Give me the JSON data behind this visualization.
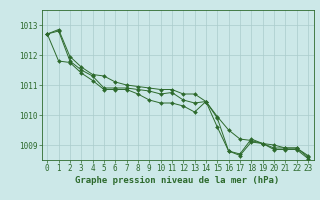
{
  "xlabel": "Graphe pression niveau de la mer (hPa)",
  "hours": [
    0,
    1,
    2,
    3,
    4,
    5,
    6,
    7,
    8,
    9,
    10,
    11,
    12,
    13,
    14,
    15,
    16,
    17,
    18,
    19,
    20,
    21,
    22,
    23
  ],
  "line_main": [
    1012.7,
    1012.8,
    1011.8,
    1011.5,
    1011.3,
    1010.9,
    1010.9,
    1010.9,
    1010.85,
    1010.8,
    1010.7,
    1010.75,
    1010.5,
    1010.4,
    1010.45,
    1009.9,
    1008.8,
    1008.7,
    1009.2,
    1009.05,
    1008.9,
    1008.9,
    1008.9,
    1008.6
  ],
  "line_upper": [
    1012.7,
    1012.85,
    1011.95,
    1011.6,
    1011.35,
    1011.3,
    1011.1,
    1011.0,
    1010.95,
    1010.9,
    1010.85,
    1010.85,
    1010.7,
    1010.7,
    1010.45,
    1009.95,
    1009.5,
    1009.2,
    1009.15,
    1009.05,
    1009.0,
    1008.9,
    1008.9,
    1008.65
  ],
  "line_lower": [
    1012.7,
    1011.8,
    1011.75,
    1011.4,
    1011.15,
    1010.85,
    1010.85,
    1010.85,
    1010.7,
    1010.5,
    1010.4,
    1010.4,
    1010.3,
    1010.1,
    1010.45,
    1009.6,
    1008.8,
    1008.65,
    1009.1,
    1009.05,
    1008.85,
    1008.85,
    1008.85,
    1008.55
  ],
  "line_color": "#2d6a2d",
  "bg_color": "#cce8e8",
  "grid_color": "#aacccc",
  "ylim_min": 1008.5,
  "ylim_max": 1013.5,
  "yticks": [
    1009,
    1010,
    1011,
    1012,
    1013
  ],
  "label_fontsize": 6.5,
  "tick_fontsize": 5.5
}
